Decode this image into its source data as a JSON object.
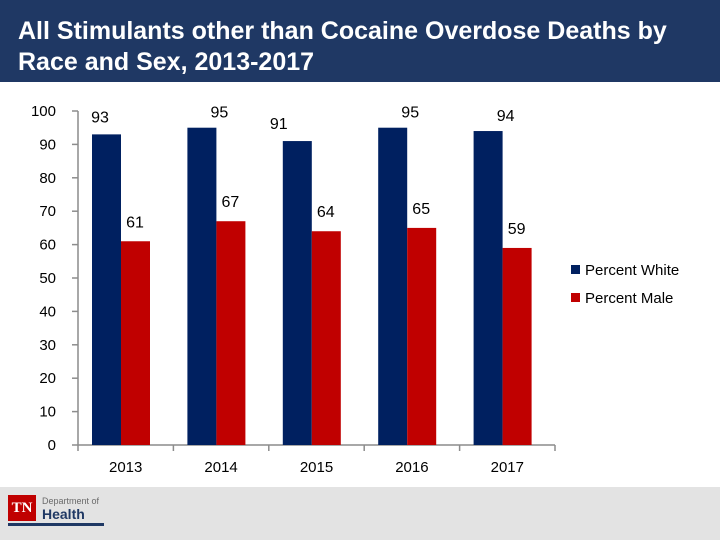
{
  "title": "All Stimulants other than Cocaine Overdose Deaths by Race and Sex, 2013-2017",
  "footer": {
    "logo_mark": "TN",
    "logo_dept": "Department of",
    "logo_health": "Health"
  },
  "chart_data": {
    "type": "bar",
    "title": "All Stimulants other than Cocaine Overdose Deaths by Race and Sex, 2013-2017",
    "xlabel": "",
    "ylabel": "",
    "ylim": [
      0,
      100
    ],
    "yticks": [
      0,
      10,
      20,
      30,
      40,
      50,
      60,
      70,
      80,
      90,
      100
    ],
    "categories": [
      "2013",
      "2014",
      "2015",
      "2016",
      "2017"
    ],
    "series": [
      {
        "name": "Percent White",
        "color": "#002060",
        "values": [
          93,
          95,
          91,
          95,
          94
        ]
      },
      {
        "name": "Percent Male",
        "color": "#c00000",
        "values": [
          61,
          67,
          64,
          65,
          59
        ]
      }
    ],
    "grid": false,
    "legend": "right"
  }
}
